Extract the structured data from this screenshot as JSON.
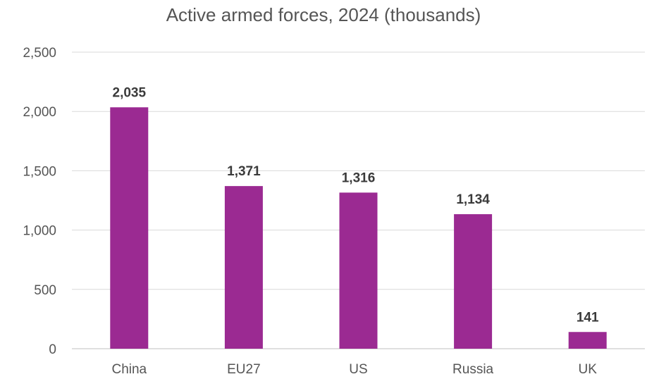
{
  "chart_data": {
    "type": "bar",
    "title": "Active armed forces, 2024 (thousands)",
    "categories": [
      "China",
      "EU27",
      "US",
      "Russia",
      "UK"
    ],
    "values": [
      2035,
      1371,
      1316,
      1134,
      141
    ],
    "data_labels": [
      "2,035",
      "1,371",
      "1,316",
      "1,134",
      "141"
    ],
    "ylim": [
      0,
      2500
    ],
    "yticks": [
      0,
      500,
      1000,
      1500,
      2000,
      2500
    ],
    "ytick_labels": [
      "0",
      "500",
      "1,000",
      "1,500",
      "2,000",
      "2,500"
    ],
    "grid": true,
    "legend": "none",
    "bar_color": "#9B2A92"
  }
}
